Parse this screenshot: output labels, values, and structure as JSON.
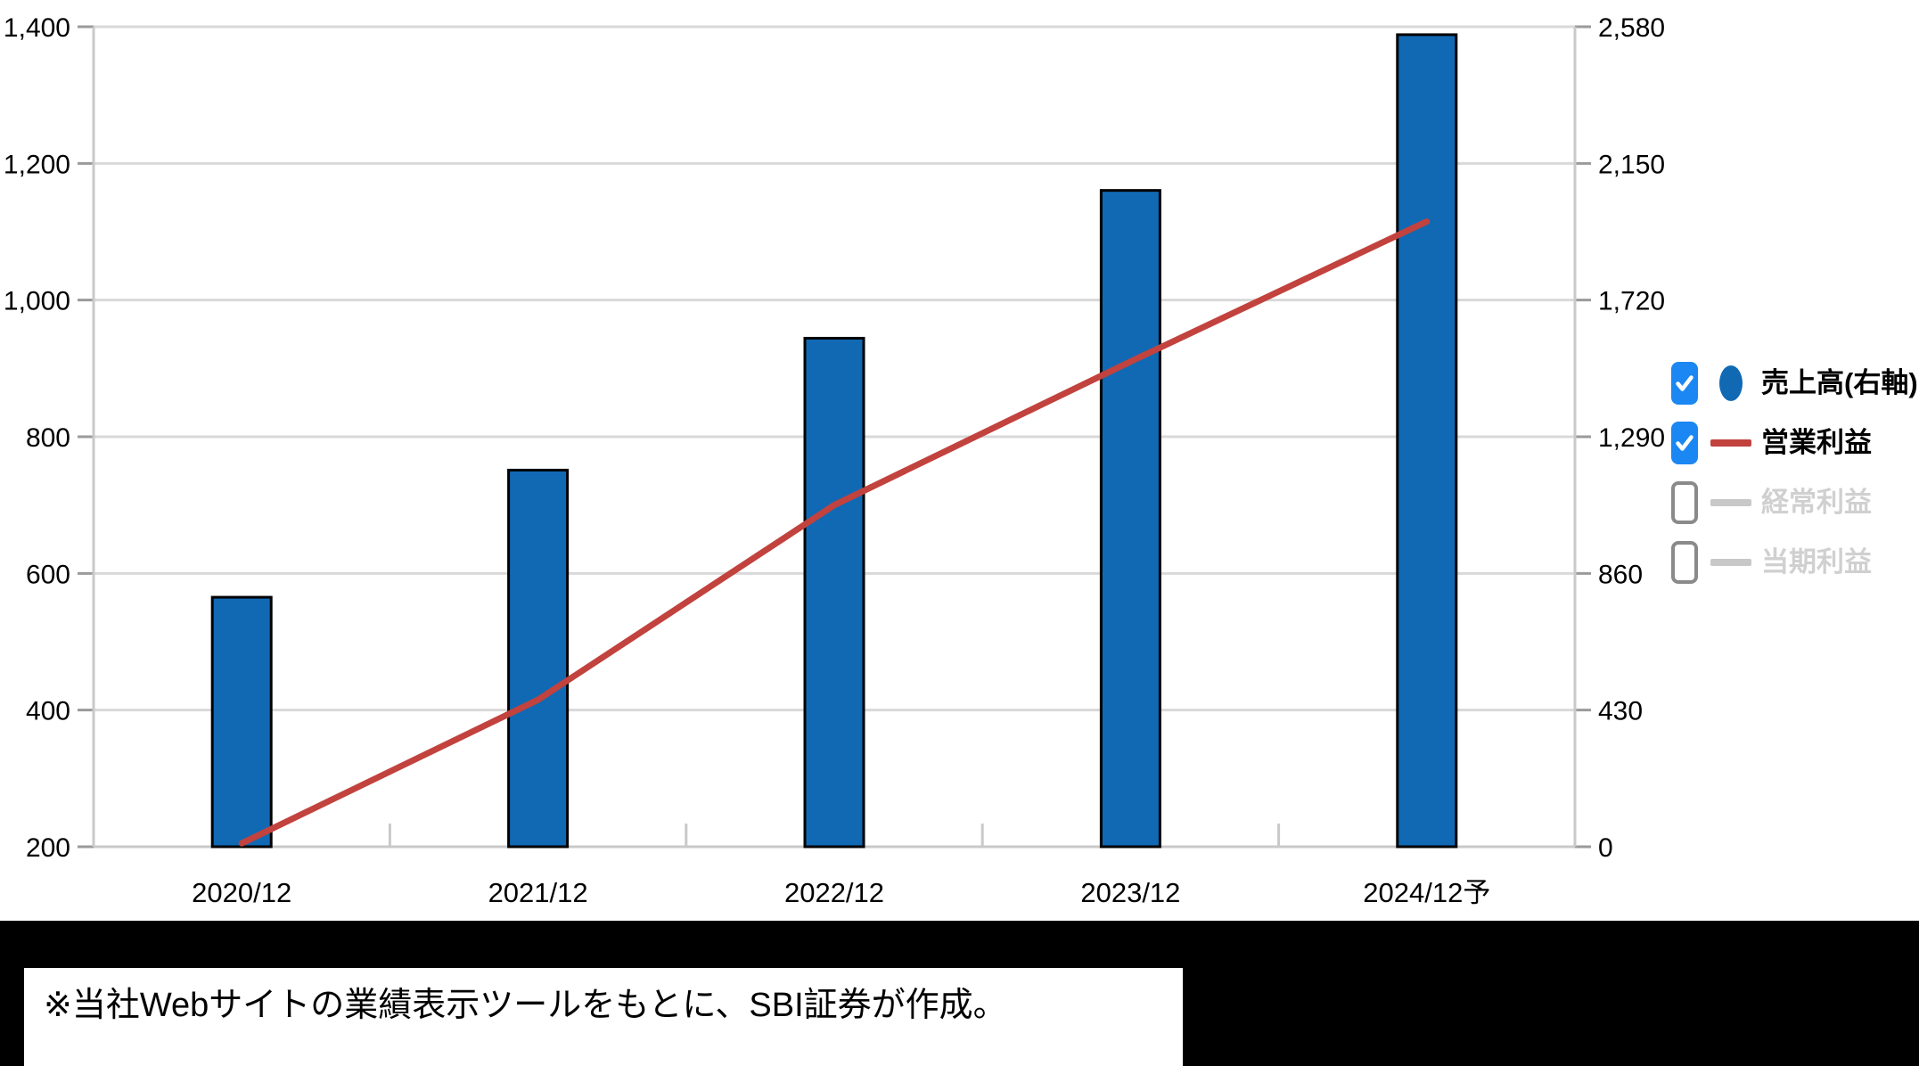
{
  "chart_data": {
    "type": "combo",
    "categories": [
      "2020/12",
      "2021/12",
      "2022/12",
      "2023/12",
      "2024/12予"
    ],
    "series": [
      {
        "name": "売上高(右軸)",
        "type": "bar",
        "axis": "right",
        "checked": true,
        "color": "#1169b4",
        "border_color": "#000000",
        "values": [
          785,
          1185,
          1600,
          2065,
          2555
        ]
      },
      {
        "name": "営業利益",
        "type": "line",
        "axis": "left",
        "checked": true,
        "color": "#c2423e",
        "values": [
          205,
          415,
          700,
          910,
          1115
        ]
      },
      {
        "name": "経常利益",
        "type": "line",
        "axis": "left",
        "checked": false,
        "color": "#c8c8c8",
        "values": []
      },
      {
        "name": "当期利益",
        "type": "line",
        "axis": "left",
        "checked": false,
        "color": "#c8c8c8",
        "values": []
      }
    ],
    "left_axis": {
      "min": 200,
      "max": 1400,
      "step": 200,
      "tick_labels": [
        "200",
        "400",
        "600",
        "800",
        "1,000",
        "1,200",
        "1,400"
      ]
    },
    "right_axis": {
      "min": 0,
      "max": 2580,
      "step": 430,
      "tick_labels": [
        "0",
        "430",
        "860",
        "1,290",
        "1,720",
        "2,150",
        "2,580"
      ]
    },
    "grid": true,
    "legend_position": "right",
    "styles": {
      "grid_color": "#d9d9d9",
      "axis_color": "#c9c9c9",
      "tick_color": "#9a9a9a",
      "text_color": "#000000",
      "checkbox_checked_color": "#1b87f2",
      "checkbox_unchecked_border": "#8a8a8a",
      "inactive_text_color": "#d0d0d0",
      "panel_background": "#ffffff",
      "page_background": "#000000"
    }
  },
  "footnote": {
    "text": "※当社Webサイトの業績表示ツールをもとに、SBI証券が作成。"
  }
}
